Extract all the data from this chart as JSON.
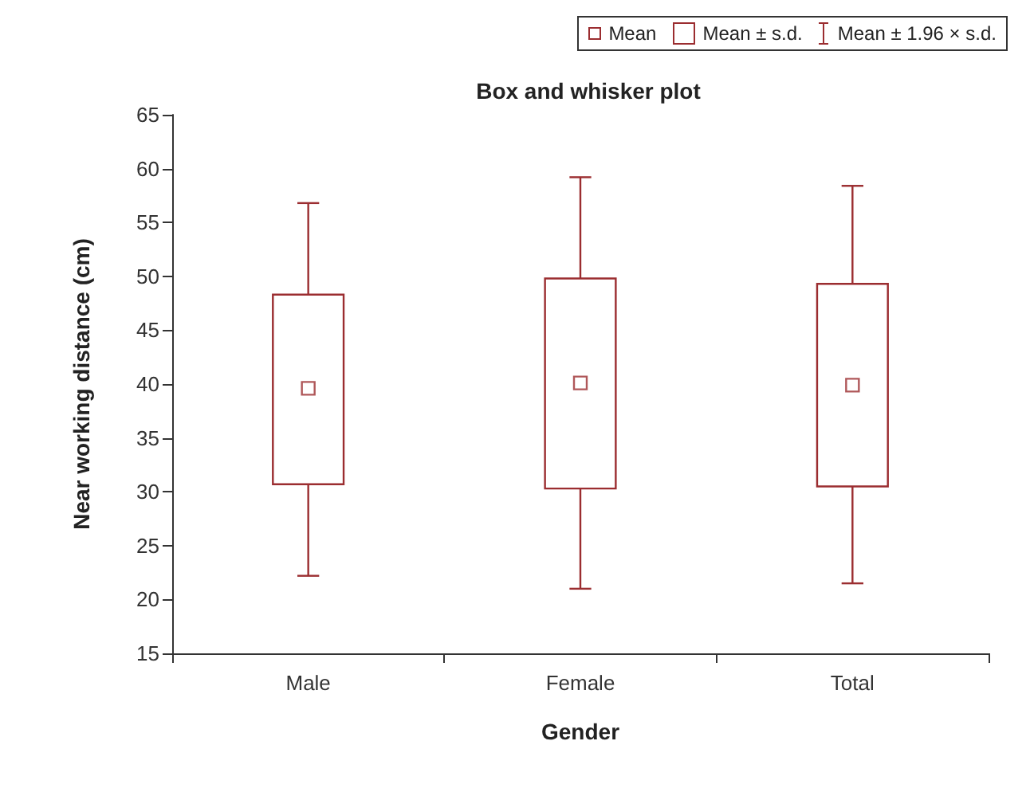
{
  "chart_data": {
    "type": "box",
    "title": "Box and whisker plot",
    "xlabel": "Gender",
    "ylabel": "Near working distance (cm)",
    "categories": [
      "Male",
      "Female",
      "Total"
    ],
    "color": "#9b2d30",
    "boxes": [
      {
        "low": 22.2,
        "q1": 30.7,
        "q3": 48.3,
        "high": 56.8,
        "mean": 39.6
      },
      {
        "low": 21.0,
        "q1": 30.3,
        "q3": 49.8,
        "high": 59.2,
        "mean": 40.1
      },
      {
        "low": 21.5,
        "q1": 30.5,
        "q3": 49.3,
        "high": 58.4,
        "mean": 39.9
      }
    ],
    "annotations": [
      "Mean",
      "Mean ± s.d.",
      "Mean ± 1.96 × s.d."
    ],
    "ylim": [
      15,
      65
    ],
    "yticks": [
      15,
      20,
      25,
      30,
      35,
      40,
      45,
      50,
      55,
      60,
      65
    ],
    "grid": false
  }
}
